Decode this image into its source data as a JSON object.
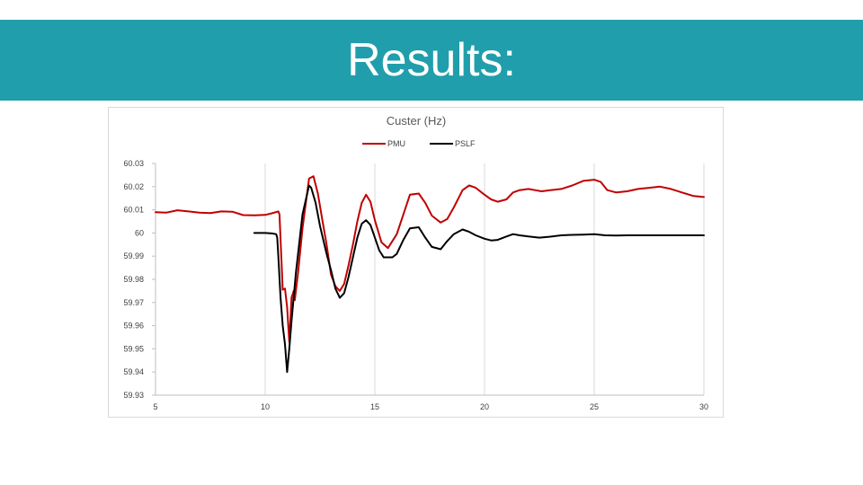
{
  "slide": {
    "title": "Results:"
  },
  "chart_data": {
    "type": "line",
    "title": "Custer (Hz)",
    "xlabel": "",
    "ylabel": "",
    "xlim": [
      5,
      30
    ],
    "ylim": [
      59.93,
      60.03
    ],
    "x_ticks": [
      "5",
      "10",
      "15",
      "20",
      "25",
      "30"
    ],
    "y_ticks": [
      "59.93",
      "59.94",
      "59.95",
      "59.96",
      "59.97",
      "59.98",
      "59.99",
      "60",
      "60.01",
      "60.02",
      "60.03"
    ],
    "grid": "vertical",
    "legend_position": "top-center",
    "series": [
      {
        "name": "PMU",
        "color": "#c00000",
        "x": [
          5,
          5.5,
          6,
          6.5,
          7,
          7.5,
          8,
          8.5,
          9,
          9.5,
          10,
          10.3,
          10.6,
          10.65,
          10.8,
          10.9,
          11.0,
          11.1,
          11.2,
          11.3,
          11.35,
          11.5,
          11.7,
          12.0,
          12.2,
          12.4,
          12.6,
          12.8,
          13.0,
          13.2,
          13.4,
          13.6,
          13.8,
          14.0,
          14.2,
          14.4,
          14.6,
          14.8,
          15.0,
          15.3,
          15.6,
          16.0,
          16.3,
          16.6,
          17.0,
          17.3,
          17.6,
          18.0,
          18.3,
          18.6,
          19.0,
          19.3,
          19.6,
          20.0,
          20.3,
          20.6,
          21.0,
          21.3,
          21.6,
          22.0,
          22.3,
          22.6,
          23.0,
          23.5,
          24.0,
          24.5,
          25.0,
          25.3,
          25.6,
          26.0,
          26.5,
          27.0,
          27.5,
          28.0,
          28.5,
          29.0,
          29.5,
          30
        ],
        "values": [
          60.009,
          60.0088,
          60.0098,
          60.0093,
          60.0088,
          60.0086,
          60.0093,
          60.0092,
          60.0077,
          60.0076,
          60.0078,
          60.0085,
          60.0093,
          60.008,
          59.9755,
          59.976,
          59.968,
          59.953,
          59.972,
          59.975,
          59.971,
          59.983,
          60.002,
          60.0235,
          60.0245,
          60.017,
          60.006,
          59.995,
          59.982,
          59.977,
          59.975,
          59.978,
          59.986,
          59.995,
          60.005,
          60.013,
          60.0165,
          60.0135,
          60.0055,
          59.996,
          59.9935,
          59.9995,
          60.008,
          60.0165,
          60.017,
          60.013,
          60.0075,
          60.0045,
          60.006,
          60.011,
          60.0185,
          60.0205,
          60.0195,
          60.0165,
          60.0145,
          60.0135,
          60.0145,
          60.0175,
          60.0185,
          60.019,
          60.0185,
          60.018,
          60.0185,
          60.019,
          60.0205,
          60.0225,
          60.023,
          60.022,
          60.0185,
          60.0175,
          60.018,
          60.019,
          60.0195,
          60.02,
          60.019,
          60.0175,
          60.016,
          60.0155
        ]
      },
      {
        "name": "PSLF",
        "color": "#000000",
        "x": [
          9.5,
          10.0,
          10.3,
          10.5,
          10.55,
          10.6,
          10.7,
          10.8,
          10.9,
          11.0,
          11.1,
          11.2,
          11.4,
          11.7,
          12.0,
          12.1,
          12.3,
          12.5,
          12.8,
          13.0,
          13.2,
          13.4,
          13.6,
          13.8,
          14.0,
          14.2,
          14.4,
          14.6,
          14.8,
          15.0,
          15.2,
          15.4,
          15.6,
          15.8,
          16.0,
          16.3,
          16.6,
          17.0,
          17.3,
          17.6,
          18.0,
          18.3,
          18.6,
          19.0,
          19.3,
          19.6,
          20.0,
          20.3,
          20.6,
          21.0,
          21.3,
          21.6,
          22.0,
          22.5,
          23.0,
          23.5,
          24.0,
          24.5,
          25.0,
          25.5,
          26.0,
          26.5,
          27.0,
          28.0,
          29.0,
          30
        ],
        "values": [
          60.0,
          60.0,
          59.9998,
          59.9995,
          59.998,
          59.99,
          59.972,
          59.96,
          59.952,
          59.94,
          59.95,
          59.962,
          59.983,
          60.008,
          60.0205,
          60.0195,
          60.013,
          60.003,
          59.991,
          59.984,
          59.976,
          59.972,
          59.974,
          59.981,
          59.9895,
          59.998,
          60.004,
          60.0055,
          60.0035,
          59.998,
          59.9925,
          59.9895,
          59.9895,
          59.9895,
          59.991,
          59.997,
          60.002,
          60.0025,
          59.998,
          59.994,
          59.993,
          59.9965,
          59.9995,
          60.0015,
          60.0005,
          59.999,
          59.9975,
          59.9968,
          59.997,
          59.9985,
          59.9995,
          59.999,
          59.9985,
          59.998,
          59.9984,
          59.999,
          59.9992,
          59.9993,
          59.9995,
          59.999,
          59.9989,
          59.999,
          59.999,
          59.999,
          59.999,
          59.999
        ]
      }
    ]
  }
}
